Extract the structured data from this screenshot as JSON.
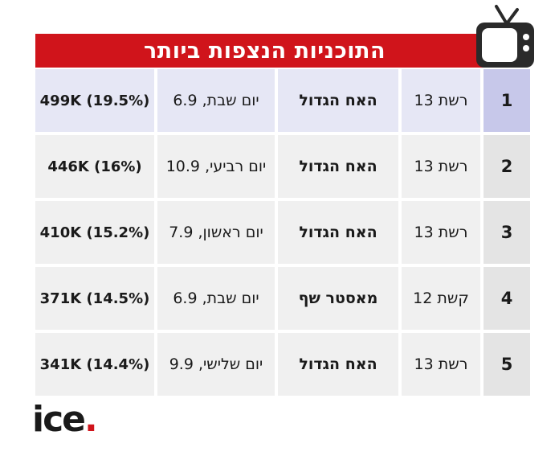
{
  "title": "התוכניות הנצפות ביותר",
  "logo": {
    "text": "ice",
    "dot": "."
  },
  "colors": {
    "title_bg": "#d0141b",
    "highlight_row": "#e6e7f5",
    "highlight_rank": "#c7c8ea",
    "cell_bg": "#f0f0f0"
  },
  "icons": {
    "tv": "tv-icon"
  },
  "rows": [
    {
      "rank": "1",
      "channel": "רשת 13",
      "show": "האח הגדול",
      "day": "יום שבת, 6.9",
      "rating": "499K (19.5%)"
    },
    {
      "rank": "2",
      "channel": "רשת 13",
      "show": "האח הגדול",
      "day": "יום רביעי, 10.9",
      "rating": "446K (16%)"
    },
    {
      "rank": "3",
      "channel": "רשת 13",
      "show": "האח הגדול",
      "day": "יום ראשון, 7.9",
      "rating": "410K (15.2%)"
    },
    {
      "rank": "4",
      "channel": "קשת 12",
      "show": "מאסטר שף",
      "day": "יום שבת, 6.9",
      "rating": "371K (14.5%)"
    },
    {
      "rank": "5",
      "channel": "רשת 13",
      "show": "האח הגדול",
      "day": "יום שלישי, 9.9",
      "rating": "341K (14.4%)"
    }
  ]
}
